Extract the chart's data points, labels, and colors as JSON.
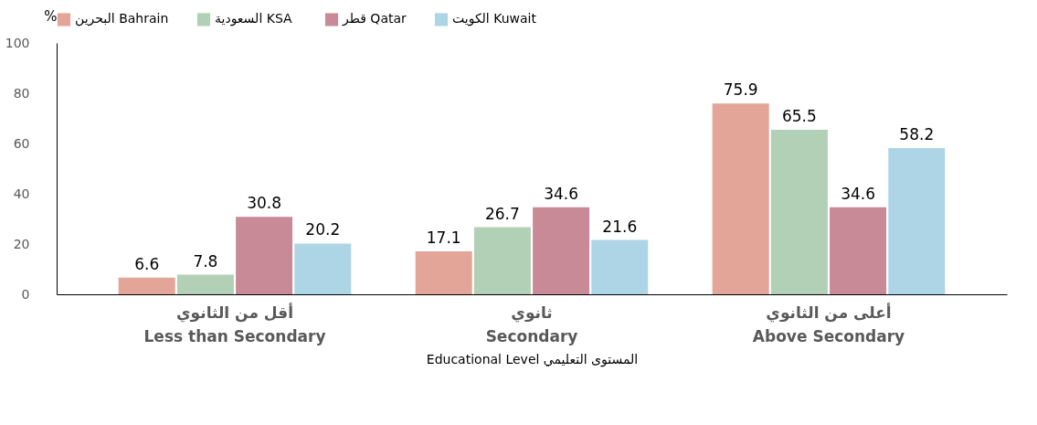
{
  "chart_data": {
    "type": "bar",
    "categories": [
      "أقل من الثانوي\nLess than Secondary",
      "ثانوي\nSecondary",
      "أعلى من الثانوي\nAbove Secondary"
    ],
    "series": [
      {
        "name": "البحرين Bahrain",
        "color": "#e2a598",
        "values": [
          6.6,
          17.1,
          75.9
        ]
      },
      {
        "name": "السعودية  KSA",
        "color": "#b2d0b5",
        "values": [
          7.8,
          26.7,
          65.5
        ]
      },
      {
        "name": "قطر Qatar",
        "color": "#c98a98",
        "values": [
          30.8,
          34.6,
          34.6
        ]
      },
      {
        "name": "الكويت Kuwait",
        "color": "#add5e6",
        "values": [
          20.2,
          21.6,
          58.2
        ]
      }
    ],
    "xlabel": "Educational Level  المستوى التعليمي",
    "ylabel": "%",
    "ylim": [
      0,
      100
    ],
    "yticks": [
      0,
      20,
      40,
      60,
      80,
      100
    ],
    "data_labels": true,
    "legend": "top",
    "grid": false
  }
}
